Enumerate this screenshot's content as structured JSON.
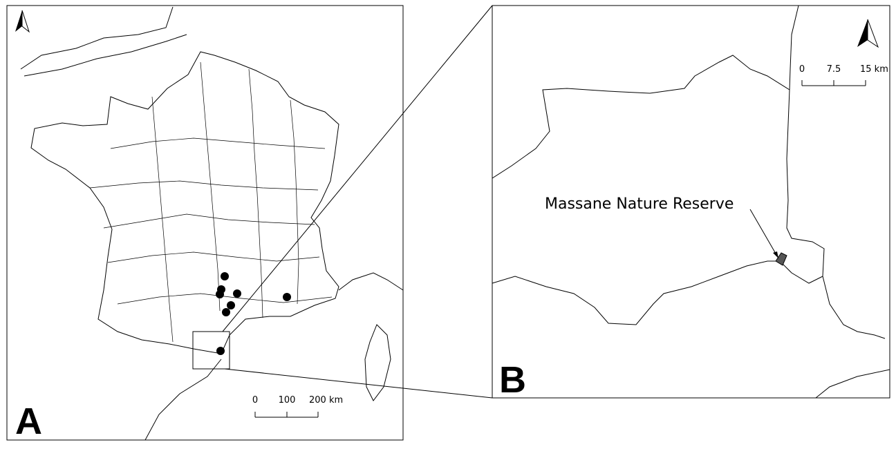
{
  "panel_a": {
    "label": "A",
    "scale_labels": [
      "0",
      "100",
      "200 km"
    ]
  },
  "panel_b": {
    "label": "B",
    "annotation": "Massane Nature Reserve",
    "scale_labels": [
      "0",
      "7.5",
      "15 km"
    ]
  }
}
